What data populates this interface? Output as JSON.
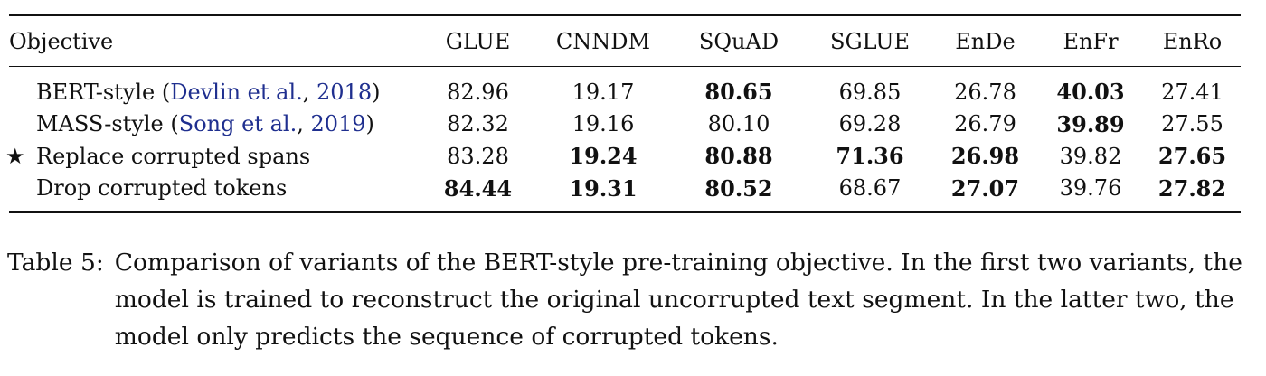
{
  "table": {
    "columns": [
      "Objective",
      "GLUE",
      "CNNDM",
      "SQuAD",
      "SGLUE",
      "EnDe",
      "EnFr",
      "EnRo"
    ],
    "rows": [
      {
        "marker": "",
        "label": "BERT-style ",
        "cite_open": "(",
        "cite_author": "Devlin et al.",
        "cite_sep": ", ",
        "cite_year": "2018",
        "cite_close": ")",
        "values": [
          "82.96",
          "19.17",
          "80.65",
          "69.85",
          "26.78",
          "40.03",
          "27.41"
        ],
        "bold": [
          false,
          false,
          true,
          false,
          false,
          true,
          false
        ]
      },
      {
        "marker": "",
        "label": "MASS-style ",
        "cite_open": "(",
        "cite_author": "Song et al.",
        "cite_sep": ", ",
        "cite_year": "2019",
        "cite_close": ")",
        "values": [
          "82.32",
          "19.16",
          "80.10",
          "69.28",
          "26.79",
          "39.89",
          "27.55"
        ],
        "bold": [
          false,
          false,
          false,
          false,
          false,
          true,
          false
        ]
      },
      {
        "marker": "★",
        "label": "Replace corrupted spans",
        "cite_open": "",
        "cite_author": "",
        "cite_sep": "",
        "cite_year": "",
        "cite_close": "",
        "values": [
          "83.28",
          "19.24",
          "80.88",
          "71.36",
          "26.98",
          "39.82",
          "27.65"
        ],
        "bold": [
          false,
          true,
          true,
          true,
          true,
          false,
          true
        ]
      },
      {
        "marker": "",
        "label": "Drop corrupted tokens",
        "cite_open": "",
        "cite_author": "",
        "cite_sep": "",
        "cite_year": "",
        "cite_close": "",
        "values": [
          "84.44",
          "19.31",
          "80.52",
          "68.67",
          "27.07",
          "39.76",
          "27.82"
        ],
        "bold": [
          true,
          true,
          true,
          false,
          true,
          false,
          true
        ]
      }
    ]
  },
  "caption": {
    "label": "Table 5:",
    "text": "Comparison of variants of the BERT-style pre-training objective. In the first two variants, the model is trained to reconstruct the original uncorrupted text segment. In the latter two, the model only predicts the sequence of corrupted tokens."
  },
  "colors": {
    "citation": "#1f2f8f",
    "text": "#111111"
  }
}
